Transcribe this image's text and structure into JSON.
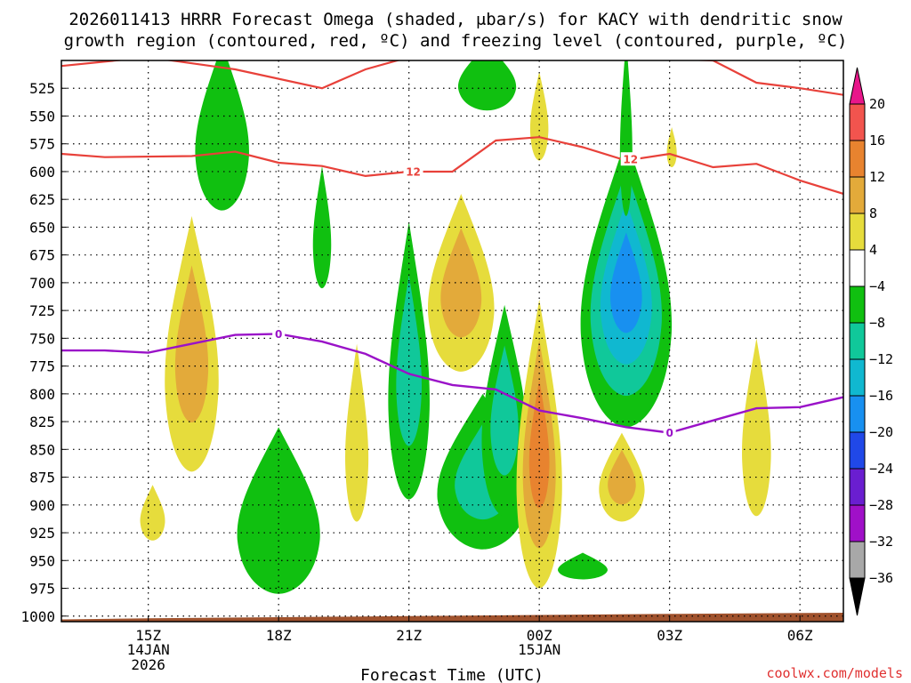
{
  "title": {
    "line1": "2026011413 HRRR Forecast Omega (shaded, μbar/s) for KACY with dendritic snow",
    "line2": "growth region (contoured, red, ºC) and freezing level (contoured, purple, ºC)"
  },
  "credit": "coolwx.com/models",
  "colors": {
    "dgz": "#e8413a",
    "freezing": "#9a12c8",
    "ground": "#a0522d",
    "grid": "#000000"
  },
  "chart_data": {
    "type": "heatmap",
    "title": "2026011413 HRRR Forecast Omega (shaded, μbar/s) for KACY with dendritic snow growth region (contoured, red, ºC) and freezing level (contoured, purple, ºC)",
    "xlabel": "Forecast Time (UTC)",
    "ylabel": "",
    "x_range_hours": [
      13,
      31
    ],
    "y_range_hpa": [
      500,
      1005
    ],
    "x_ticks": [
      {
        "hour": 15,
        "label": "15Z",
        "date1": "14JAN",
        "date2": "2026"
      },
      {
        "hour": 18,
        "label": "18Z",
        "date1": "",
        "date2": ""
      },
      {
        "hour": 21,
        "label": "21Z",
        "date1": "",
        "date2": ""
      },
      {
        "hour": 24,
        "label": "00Z",
        "date1": "15JAN",
        "date2": ""
      },
      {
        "hour": 27,
        "label": "03Z",
        "date1": "",
        "date2": ""
      },
      {
        "hour": 30,
        "label": "06Z",
        "date1": "",
        "date2": ""
      }
    ],
    "y_ticks": [
      525,
      550,
      575,
      600,
      625,
      650,
      675,
      700,
      725,
      750,
      775,
      800,
      825,
      850,
      875,
      900,
      925,
      950,
      975,
      1000
    ],
    "colorbar": {
      "label_values": [
        "20",
        "16",
        "12",
        "8",
        "4",
        "−4",
        "−8",
        "−12",
        "−16",
        "−20",
        "−24",
        "−28",
        "−32",
        "−36"
      ],
      "bins": [
        {
          "from": 16,
          "to": 20,
          "color": "#f2544e"
        },
        {
          "from": 12,
          "to": 16,
          "color": "#e8832f"
        },
        {
          "from": 8,
          "to": 12,
          "color": "#e3aa3a"
        },
        {
          "from": 4,
          "to": 8,
          "color": "#e6dc3c"
        },
        {
          "from": -4,
          "to": 4,
          "color": "#ffffff"
        },
        {
          "from": -8,
          "to": -4,
          "color": "#10c010"
        },
        {
          "from": -12,
          "to": -8,
          "color": "#10c89a"
        },
        {
          "from": -16,
          "to": -12,
          "color": "#10b8d0"
        },
        {
          "from": -20,
          "to": -16,
          "color": "#1890f0"
        },
        {
          "from": -24,
          "to": -20,
          "color": "#2048e8"
        },
        {
          "from": -28,
          "to": -24,
          "color": "#6a1ed0"
        },
        {
          "from": -32,
          "to": -28,
          "color": "#a010c8"
        },
        {
          "from": -36,
          "to": -32,
          "color": "#a8a8a8"
        }
      ],
      "top_arrow_color": "#e8168a",
      "bottom_arrow_color": "#000000"
    },
    "omega_blobs": [
      {
        "name": "green-15z-upper",
        "cx": 16.7,
        "cp": 560,
        "rx": 0.65,
        "rp": 75,
        "layers": [
          {
            "value": -6,
            "color": "#10c010"
          }
        ]
      },
      {
        "name": "yellow-16z-mid",
        "cx": 16.0,
        "cp": 755,
        "rx": 0.65,
        "rp": 115,
        "layers": [
          {
            "value": 6,
            "color": "#e6dc3c"
          },
          {
            "value": 10,
            "color": "#e3aa3a"
          }
        ]
      },
      {
        "name": "yellow-15z-low",
        "cx": 15.1,
        "cp": 907,
        "rx": 0.3,
        "rp": 25,
        "layers": [
          {
            "value": 6,
            "color": "#e6dc3c"
          }
        ]
      },
      {
        "name": "green-18z-low",
        "cx": 18.0,
        "cp": 905,
        "rx": 1.0,
        "rp": 75,
        "layers": [
          {
            "value": -6,
            "color": "#10c010"
          }
        ]
      },
      {
        "name": "green-19z-mid",
        "cx": 19.0,
        "cp": 650,
        "rx": 0.22,
        "rp": 55,
        "layers": [
          {
            "value": -6,
            "color": "#10c010"
          }
        ]
      },
      {
        "name": "yellow-20z-low",
        "cx": 19.8,
        "cp": 835,
        "rx": 0.28,
        "rp": 80,
        "layers": [
          {
            "value": 6,
            "color": "#e6dc3c"
          }
        ]
      },
      {
        "name": "green-21z-column",
        "cx": 21.0,
        "cp": 770,
        "rx": 0.5,
        "rp": 125,
        "layers": [
          {
            "value": -6,
            "color": "#10c010"
          },
          {
            "value": -10,
            "color": "#10c89a"
          }
        ]
      },
      {
        "name": "yellow-22z-mid",
        "cx": 22.2,
        "cp": 700,
        "rx": 0.8,
        "rp": 80,
        "layers": [
          {
            "value": 6,
            "color": "#e6dc3c"
          },
          {
            "value": 10,
            "color": "#e3aa3a"
          }
        ]
      },
      {
        "name": "green-22z-low",
        "cx": 22.7,
        "cp": 870,
        "rx": 1.1,
        "rp": 70,
        "layers": [
          {
            "value": -6,
            "color": "#10c010"
          },
          {
            "value": -10,
            "color": "#10c89a"
          }
        ]
      },
      {
        "name": "green-23z-mid",
        "cx": 23.2,
        "cp": 815,
        "rx": 0.55,
        "rp": 95,
        "layers": [
          {
            "value": -6,
            "color": "#10c010"
          },
          {
            "value": -10,
            "color": "#10c89a"
          }
        ]
      },
      {
        "name": "green-23z-top",
        "cx": 22.8,
        "cp": 515,
        "rx": 0.7,
        "rp": 30,
        "layers": [
          {
            "value": -6,
            "color": "#10c010"
          }
        ]
      },
      {
        "name": "yellow-00z-upper",
        "cx": 24.0,
        "cp": 550,
        "rx": 0.22,
        "rp": 40,
        "layers": [
          {
            "value": 6,
            "color": "#e6dc3c"
          }
        ]
      },
      {
        "name": "yellow-00z-low",
        "cx": 24.0,
        "cp": 845,
        "rx": 0.55,
        "rp": 130,
        "layers": [
          {
            "value": 6,
            "color": "#e6dc3c"
          },
          {
            "value": 10,
            "color": "#e3aa3a"
          },
          {
            "value": 14,
            "color": "#e8832f"
          }
        ]
      },
      {
        "name": "green-02z-column",
        "cx": 26.0,
        "cp": 700,
        "rx": 1.1,
        "rp": 130,
        "layers": [
          {
            "value": -6,
            "color": "#10c010"
          },
          {
            "value": -10,
            "color": "#10c89a"
          },
          {
            "value": -14,
            "color": "#10b8d0"
          },
          {
            "value": -18,
            "color": "#1890f0"
          }
        ]
      },
      {
        "name": "green-02z-top",
        "cx": 26.0,
        "cp": 560,
        "rx": 0.15,
        "rp": 80,
        "layers": [
          {
            "value": -6,
            "color": "#10c010"
          }
        ]
      },
      {
        "name": "yellow-02z-low",
        "cx": 25.9,
        "cp": 875,
        "rx": 0.55,
        "rp": 40,
        "layers": [
          {
            "value": 6,
            "color": "#e6dc3c"
          },
          {
            "value": 10,
            "color": "#e3aa3a"
          }
        ]
      },
      {
        "name": "green-01z-bottom",
        "cx": 25.0,
        "cp": 955,
        "rx": 0.6,
        "rp": 12,
        "layers": [
          {
            "value": -6,
            "color": "#10c010"
          }
        ]
      },
      {
        "name": "yellow-03z-upper",
        "cx": 27.05,
        "cp": 578,
        "rx": 0.12,
        "rp": 18,
        "layers": [
          {
            "value": 6,
            "color": "#e6dc3c"
          }
        ]
      },
      {
        "name": "yellow-05z-low",
        "cx": 29.0,
        "cp": 830,
        "rx": 0.35,
        "rp": 80,
        "layers": [
          {
            "value": 6,
            "color": "#e6dc3c"
          }
        ]
      }
    ],
    "dgz_contours": [
      {
        "name": "dgz-upper",
        "points": [
          [
            13,
            505
          ],
          [
            15,
            497
          ],
          [
            17,
            508
          ],
          [
            19,
            525
          ],
          [
            20,
            508
          ],
          [
            21,
            497
          ],
          [
            24,
            497
          ],
          [
            26,
            497
          ],
          [
            28,
            500
          ],
          [
            29,
            520
          ],
          [
            30,
            525
          ],
          [
            31,
            531
          ]
        ]
      },
      {
        "name": "dgz-lower",
        "label": "12",
        "points": [
          [
            13,
            584
          ],
          [
            14,
            587
          ],
          [
            16,
            586
          ],
          [
            17,
            582
          ],
          [
            18,
            592
          ],
          [
            19,
            595
          ],
          [
            20,
            604
          ],
          [
            21,
            600
          ],
          [
            22,
            600
          ],
          [
            23,
            572
          ],
          [
            24,
            569
          ],
          [
            25,
            578
          ],
          [
            26,
            590
          ],
          [
            27,
            584
          ],
          [
            28,
            596
          ],
          [
            29,
            593
          ],
          [
            30,
            608
          ],
          [
            31,
            620
          ]
        ]
      }
    ],
    "dgz_label_positions": [
      [
        21.1,
        600
      ],
      [
        26.1,
        589
      ]
    ],
    "freezing_level": {
      "name": "freezing-level",
      "label": "0",
      "points": [
        [
          13,
          761
        ],
        [
          14,
          761
        ],
        [
          15,
          763
        ],
        [
          16,
          755
        ],
        [
          17,
          747
        ],
        [
          18,
          746
        ],
        [
          19,
          753
        ],
        [
          20,
          764
        ],
        [
          21,
          782
        ],
        [
          22,
          792
        ],
        [
          23,
          796
        ],
        [
          24,
          815
        ],
        [
          25,
          822
        ],
        [
          26,
          830
        ],
        [
          27,
          835
        ],
        [
          28,
          824
        ],
        [
          29,
          813
        ],
        [
          30,
          812
        ],
        [
          31,
          803
        ]
      ],
      "label_positions": [
        [
          18.0,
          746
        ],
        [
          27.0,
          835
        ]
      ]
    },
    "ground_profile": [
      [
        13,
        1003
      ],
      [
        15,
        1002
      ],
      [
        18,
        1001
      ],
      [
        21,
        1000
      ],
      [
        24,
        999
      ],
      [
        27,
        998
      ],
      [
        31,
        997
      ]
    ]
  }
}
